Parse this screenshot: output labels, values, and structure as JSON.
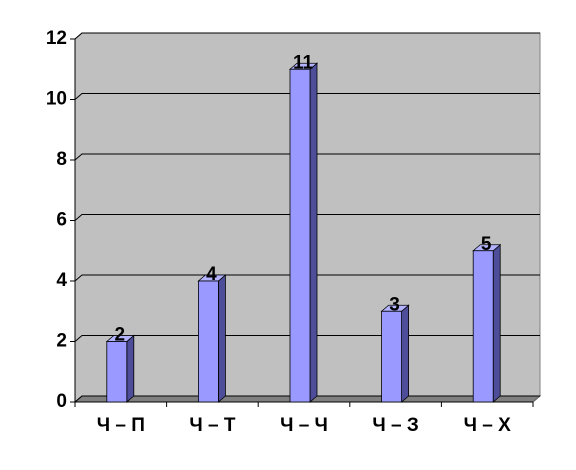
{
  "chart_data": {
    "type": "bar",
    "categories": [
      "Ч – П",
      "Ч – Т",
      "Ч – Ч",
      "Ч – З",
      "Ч – Х"
    ],
    "values": [
      2,
      4,
      11,
      3,
      5
    ],
    "color": "#9999ff",
    "ylim": [
      0,
      12
    ],
    "yticks": [
      0,
      2,
      4,
      6,
      8,
      10,
      12
    ],
    "grid": true
  }
}
